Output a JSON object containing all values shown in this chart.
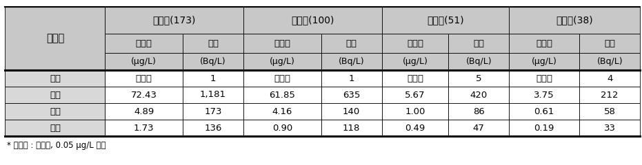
{
  "header_row1_labels": [
    "화강암(173)",
    "변성암(100)",
    "퇴적암(51)",
    "화산암(38)"
  ],
  "header_row2_labels": [
    "우라늄",
    "라돈",
    "우라늄",
    "라돈",
    "우라늄",
    "라돈",
    "우라늄",
    "라돈"
  ],
  "header_row3_labels": [
    "(μg/L)",
    "(Bq/L)",
    "(μg/L)",
    "(Bq/L)",
    "(μg/L)",
    "(Bq/L)",
    "(μg/L)",
    "(Bq/L)"
  ],
  "stat_label": "통계치",
  "data_rows": [
    [
      "최소",
      "불검출",
      "1",
      "불검출",
      "1",
      "불검출",
      "5",
      "불검출",
      "4"
    ],
    [
      "최대",
      "72.43",
      "1,181",
      "61.85",
      "635",
      "5.67",
      "420",
      "3.75",
      "212"
    ],
    [
      "평균",
      "4.89",
      "173",
      "4.16",
      "140",
      "1.00",
      "86",
      "0.61",
      "58"
    ],
    [
      "중앙",
      "1.73",
      "136",
      "0.90",
      "118",
      "0.49",
      "47",
      "0.19",
      "33"
    ]
  ],
  "footnote": "* 불검출 : 우라늄, 0.05 μg/L 미만",
  "header_bg": "#c8c8c8",
  "data_label_bg": "#d8d8d8",
  "row_bg_white": "#ffffff",
  "border_color": "#000000",
  "text_color": "#000000"
}
